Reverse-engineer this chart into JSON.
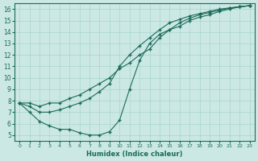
{
  "bg_color": "#cce8e4",
  "line_color": "#1a6b5a",
  "grid_color": "#a8d4cc",
  "xlabel": "Humidex (Indice chaleur)",
  "xlim": [
    -0.5,
    23.5
  ],
  "ylim": [
    4.5,
    16.5
  ],
  "xticks": [
    0,
    1,
    2,
    3,
    4,
    5,
    6,
    7,
    8,
    9,
    10,
    11,
    12,
    13,
    14,
    15,
    16,
    17,
    18,
    19,
    20,
    21,
    22,
    23
  ],
  "yticks": [
    5,
    6,
    7,
    8,
    9,
    10,
    11,
    12,
    13,
    14,
    15,
    16
  ],
  "line1_x": [
    0,
    1,
    2,
    3,
    4,
    5,
    6,
    7,
    8,
    9,
    10,
    11,
    12,
    13,
    14,
    15,
    16,
    17,
    18,
    19,
    20,
    21,
    22,
    23
  ],
  "line1_y": [
    7.8,
    7.8,
    7.5,
    7.8,
    7.8,
    8.2,
    8.5,
    9.0,
    9.5,
    10.0,
    10.8,
    11.3,
    12.0,
    12.5,
    13.5,
    14.2,
    14.8,
    15.2,
    15.5,
    15.7,
    15.9,
    16.1,
    16.2,
    16.3
  ],
  "line2_x": [
    0,
    1,
    2,
    3,
    4,
    5,
    6,
    7,
    8,
    9,
    10,
    11,
    12,
    13,
    14,
    15,
    16,
    17,
    18,
    19,
    20,
    21,
    22,
    23
  ],
  "line2_y": [
    7.8,
    7.5,
    7.0,
    7.0,
    7.2,
    7.5,
    7.8,
    8.2,
    8.8,
    9.5,
    11.0,
    12.0,
    12.8,
    13.5,
    14.2,
    14.8,
    15.1,
    15.4,
    15.6,
    15.8,
    16.0,
    16.1,
    16.2,
    16.3
  ],
  "line3_x": [
    0,
    1,
    2,
    3,
    4,
    5,
    6,
    7,
    8,
    9,
    10,
    11,
    12,
    13,
    14,
    15,
    16,
    17,
    18,
    19,
    20,
    21,
    22,
    23
  ],
  "line3_y": [
    7.8,
    7.0,
    6.2,
    5.8,
    5.5,
    5.5,
    5.2,
    5.0,
    5.0,
    5.3,
    6.3,
    9.0,
    11.5,
    13.0,
    13.8,
    14.2,
    14.5,
    15.0,
    15.3,
    15.5,
    15.8,
    16.0,
    16.2,
    16.3
  ]
}
